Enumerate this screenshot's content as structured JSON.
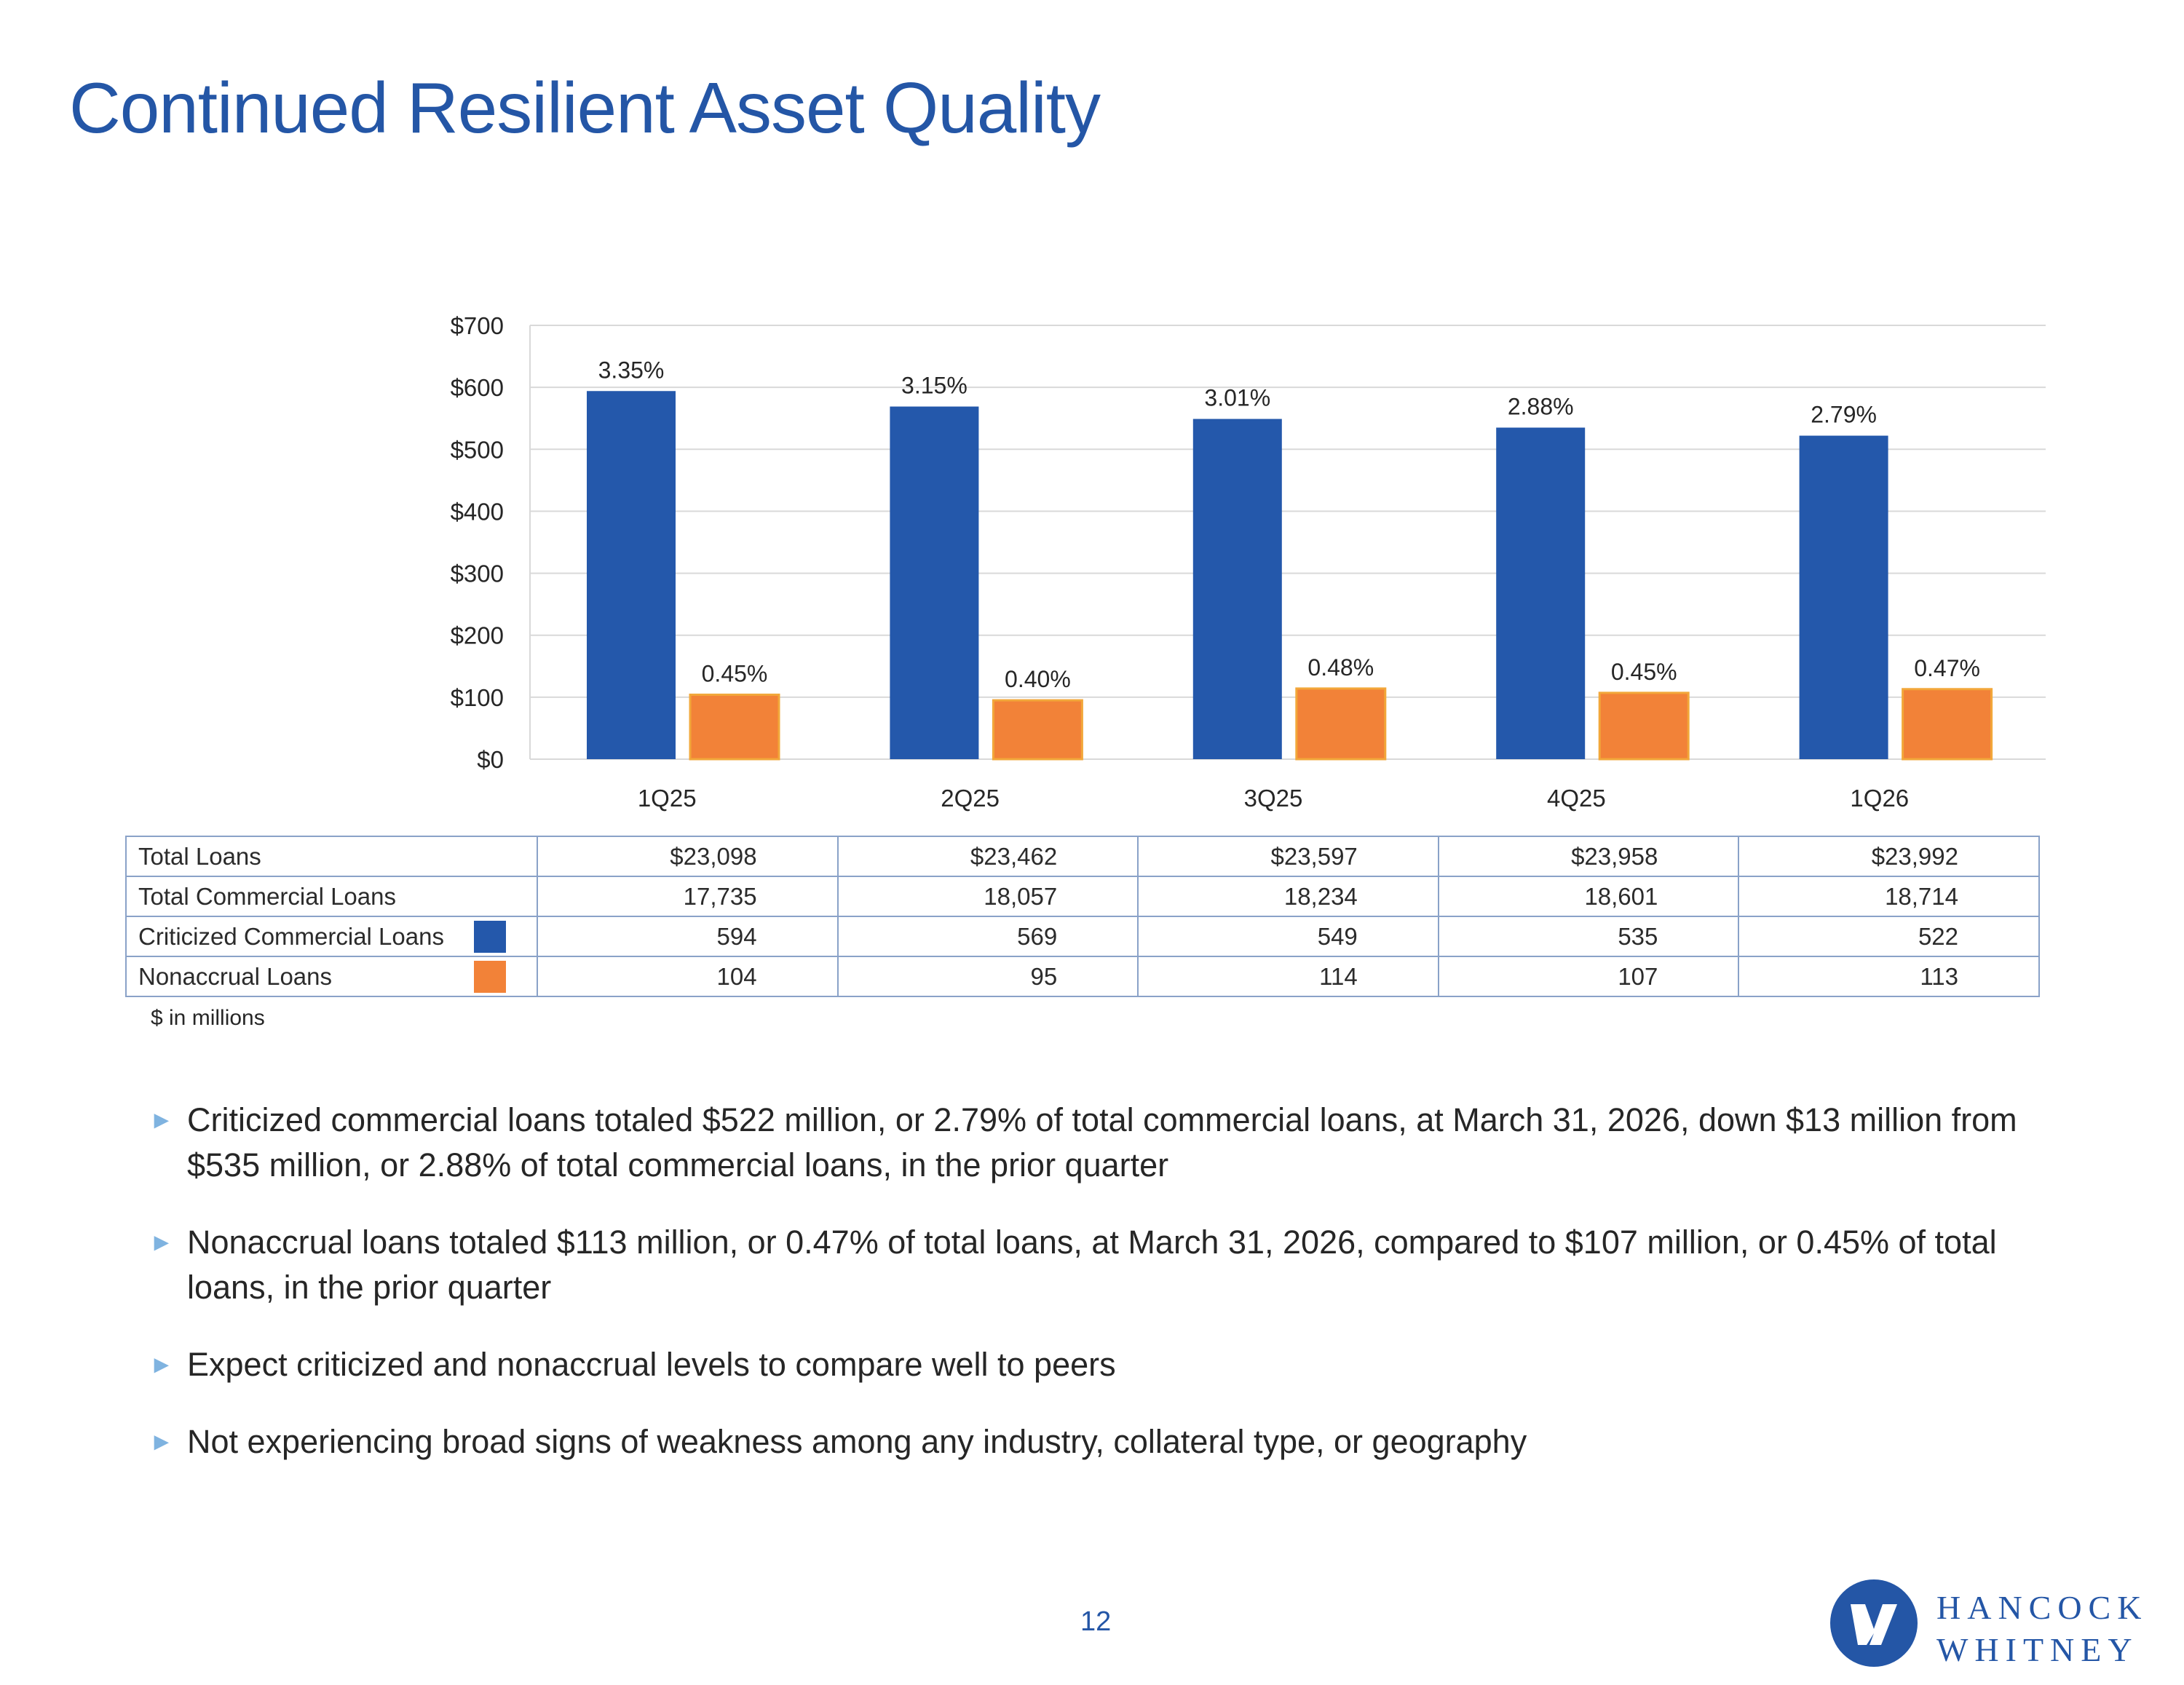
{
  "title": "Continued Resilient Asset Quality",
  "chart_data": {
    "type": "bar",
    "categories": [
      "1Q25",
      "2Q25",
      "3Q25",
      "4Q25",
      "1Q26"
    ],
    "series": [
      {
        "name": "Criticized Commercial Loans",
        "values": [
          594,
          569,
          549,
          535,
          522
        ],
        "labels": [
          "3.35%",
          "3.15%",
          "3.01%",
          "2.88%",
          "2.79%"
        ],
        "color": "#2458ab"
      },
      {
        "name": "Nonaccrual Loans",
        "values": [
          104,
          95,
          114,
          107,
          113
        ],
        "labels": [
          "0.45%",
          "0.40%",
          "0.48%",
          "0.45%",
          "0.47%"
        ],
        "color": "#f28238"
      }
    ],
    "ylim": [
      0,
      700
    ],
    "yticks": [
      0,
      100,
      200,
      300,
      400,
      500,
      600,
      700
    ],
    "ytick_labels": [
      "$0",
      "$100",
      "$200",
      "$300",
      "$400",
      "$500",
      "$600",
      "$700"
    ],
    "grid": true
  },
  "table": {
    "rows": [
      {
        "label": "Total Loans",
        "swatch": "",
        "values": [
          "$23,098",
          "$23,462",
          "$23,597",
          "$23,958",
          "$23,992"
        ]
      },
      {
        "label": "Total Commercial Loans",
        "swatch": "",
        "values": [
          "17,735",
          "18,057",
          "18,234",
          "18,601",
          "18,714"
        ]
      },
      {
        "label": "Criticized Commercial Loans",
        "swatch": "#2458ab",
        "values": [
          "594",
          "569",
          "549",
          "535",
          "522"
        ]
      },
      {
        "label": "Nonaccrual Loans",
        "swatch": "#f28238",
        "values": [
          "104",
          "95",
          "114",
          "107",
          "113"
        ]
      }
    ],
    "note": "$ in millions"
  },
  "bullets": [
    "Criticized commercial loans totaled $522 million, or 2.79% of total commercial loans, at March 31, 2026, down $13 million from $535 million, or 2.88% of total commercial loans, in the prior quarter",
    "Nonaccrual loans totaled $113 million, or 0.47% of total loans, at March 31, 2026, compared to $107 million, or 0.45% of total loans, in the prior quarter",
    "Expect criticized and nonaccrual levels to compare well to peers",
    "Not experiencing broad signs of weakness among any industry, collateral type, or geography"
  ],
  "bullet_marker": "►",
  "page_number": "12",
  "logo": {
    "line1": "HANCOCK",
    "line2": "WHITNEY",
    "icon": "hancock-whitney-logo-icon",
    "color": "#2456a6"
  }
}
